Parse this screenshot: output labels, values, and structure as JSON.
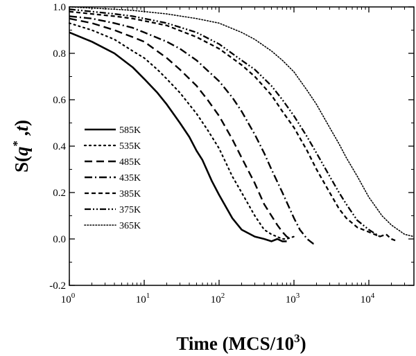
{
  "chart_data": {
    "type": "line",
    "title": "",
    "xlabel": {
      "prefix": "Time (MCS/10",
      "superscript": "3",
      "suffix": ")"
    },
    "ylabel": {
      "prefix": "S(",
      "italic": "q",
      "superscript": "*",
      "middle": " ,",
      "italic2": "t",
      "suffix": ")"
    },
    "xscale": "log",
    "xlim": [
      1,
      40000
    ],
    "ylim": [
      -0.2,
      1.0
    ],
    "xticks": [
      {
        "value": 1,
        "base": "10",
        "exp": "0"
      },
      {
        "value": 10,
        "base": "10",
        "exp": "1"
      },
      {
        "value": 100,
        "base": "10",
        "exp": "2"
      },
      {
        "value": 1000,
        "base": "10",
        "exp": "3"
      },
      {
        "value": 10000,
        "base": "10",
        "exp": "4"
      }
    ],
    "yticks": [
      {
        "value": 1.0,
        "label": "1.0"
      },
      {
        "value": 0.8,
        "label": "0.8"
      },
      {
        "value": 0.6,
        "label": "0.6"
      },
      {
        "value": 0.4,
        "label": "0.4"
      },
      {
        "value": 0.2,
        "label": "0.2"
      },
      {
        "value": 0.0,
        "label": "0.0"
      },
      {
        "value": -0.2,
        "label": "-0.2"
      }
    ],
    "grid": false,
    "legend_position": "left-middle",
    "series": [
      {
        "name": "585K",
        "style": "solid",
        "x": [
          1,
          2,
          4,
          7,
          10,
          15,
          20,
          30,
          40,
          50,
          60,
          80,
          100,
          150,
          200,
          300,
          400,
          500,
          600,
          700,
          800
        ],
        "y": [
          0.89,
          0.85,
          0.8,
          0.74,
          0.69,
          0.63,
          0.58,
          0.5,
          0.44,
          0.38,
          0.34,
          0.25,
          0.19,
          0.09,
          0.04,
          0.01,
          0.0,
          -0.01,
          0.0,
          -0.01,
          -0.01
        ]
      },
      {
        "name": "535K",
        "style": "dotted",
        "x": [
          1,
          2,
          4,
          7,
          10,
          15,
          20,
          30,
          50,
          70,
          100,
          150,
          200,
          300,
          400,
          500,
          700,
          800,
          1000
        ],
        "y": [
          0.93,
          0.9,
          0.86,
          0.81,
          0.78,
          0.73,
          0.69,
          0.63,
          0.54,
          0.47,
          0.39,
          0.27,
          0.2,
          0.1,
          0.04,
          0.02,
          0.0,
          0.0,
          0.01
        ]
      },
      {
        "name": "485K",
        "style": "dashed",
        "x": [
          1,
          2,
          4,
          7,
          10,
          20,
          30,
          50,
          70,
          100,
          150,
          200,
          300,
          400,
          500,
          600,
          700,
          800,
          900
        ],
        "y": [
          0.95,
          0.93,
          0.9,
          0.87,
          0.85,
          0.78,
          0.73,
          0.66,
          0.6,
          0.53,
          0.43,
          0.35,
          0.24,
          0.15,
          0.1,
          0.06,
          0.03,
          0.01,
          0.0
        ]
      },
      {
        "name": "435K",
        "style": "dashdot",
        "x": [
          1,
          2,
          4,
          7,
          10,
          20,
          30,
          50,
          100,
          150,
          200,
          300,
          400,
          500,
          700,
          1000,
          1200,
          1500,
          1800,
          2000
        ],
        "y": [
          0.96,
          0.95,
          0.93,
          0.91,
          0.89,
          0.85,
          0.82,
          0.77,
          0.68,
          0.61,
          0.55,
          0.45,
          0.37,
          0.3,
          0.2,
          0.09,
          0.04,
          0.0,
          -0.02,
          -0.02
        ]
      },
      {
        "name": "385K",
        "style": "shortdash",
        "x": [
          1,
          2,
          4,
          7,
          10,
          20,
          50,
          100,
          200,
          300,
          500,
          700,
          1000,
          1500,
          2000,
          3000,
          4000,
          5000,
          7000,
          10000,
          14000,
          17000,
          20000,
          24000
        ],
        "y": [
          0.98,
          0.97,
          0.96,
          0.95,
          0.94,
          0.92,
          0.87,
          0.82,
          0.75,
          0.7,
          0.62,
          0.55,
          0.48,
          0.38,
          0.3,
          0.2,
          0.13,
          0.09,
          0.05,
          0.03,
          0.01,
          0.02,
          0.0,
          -0.01
        ]
      },
      {
        "name": "375K",
        "style": "dashdotdot",
        "x": [
          1,
          2,
          4,
          7,
          10,
          20,
          50,
          100,
          200,
          300,
          500,
          700,
          1000,
          1500,
          2000,
          3000,
          4000,
          5000,
          7000,
          10000,
          14000
        ],
        "y": [
          0.99,
          0.98,
          0.97,
          0.96,
          0.95,
          0.93,
          0.89,
          0.84,
          0.77,
          0.73,
          0.66,
          0.6,
          0.53,
          0.44,
          0.37,
          0.27,
          0.2,
          0.15,
          0.08,
          0.04,
          0.01
        ]
      },
      {
        "name": "365K",
        "style": "densedot",
        "x": [
          1,
          2,
          4,
          7,
          10,
          20,
          50,
          100,
          200,
          300,
          500,
          700,
          1000,
          1500,
          2000,
          3000,
          4000,
          5000,
          7000,
          10000,
          15000,
          20000,
          30000,
          40000
        ],
        "y": [
          1.0,
          0.995,
          0.99,
          0.985,
          0.98,
          0.97,
          0.95,
          0.93,
          0.89,
          0.86,
          0.81,
          0.77,
          0.72,
          0.64,
          0.58,
          0.48,
          0.41,
          0.35,
          0.27,
          0.18,
          0.1,
          0.06,
          0.02,
          0.01
        ]
      }
    ]
  }
}
